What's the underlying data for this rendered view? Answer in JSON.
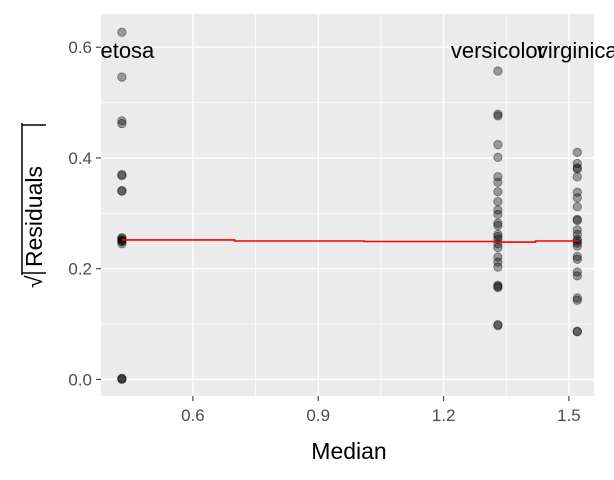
{
  "chart_data": {
    "type": "scatter",
    "title": "",
    "xlabel": "Median",
    "ylabel": "√|Residuals|",
    "ylabel_parts": {
      "radical": "√",
      "text": "Residuals"
    },
    "xlim": [
      0.38,
      1.56
    ],
    "ylim": [
      -0.03,
      0.66
    ],
    "x_ticks": [
      0.6,
      0.9,
      1.2,
      1.5
    ],
    "x_tick_labels": [
      "0.6",
      "0.9",
      "1.2",
      "1.5"
    ],
    "y_ticks": [
      0.0,
      0.2,
      0.4,
      0.6
    ],
    "y_tick_labels": [
      "0.0",
      "0.2",
      "0.4",
      "0.6"
    ],
    "grid": true,
    "background": "#ebebeb",
    "grid_color": "#ffffff",
    "point_color": "#000000",
    "smooth_color": "#ff0000",
    "group_labels": [
      {
        "text": "setosa",
        "x": 0.43,
        "y": 0.595
      },
      {
        "text": "versicolor",
        "x": 1.33,
        "y": 0.595
      },
      {
        "text": "virginica",
        "x": 1.52,
        "y": 0.595
      }
    ],
    "series": [
      {
        "x_value": 0.43,
        "y": [
          0.627,
          0.546,
          0.467,
          0.462,
          0.37,
          0.368,
          0.341,
          0.34,
          0.256,
          0.254,
          0.252,
          0.25,
          0.249,
          0.245,
          0.002,
          0.001,
          0.0
        ]
      },
      {
        "x_value": 1.33,
        "y": [
          0.557,
          0.479,
          0.476,
          0.424,
          0.401,
          0.366,
          0.356,
          0.339,
          0.321,
          0.306,
          0.298,
          0.282,
          0.278,
          0.262,
          0.258,
          0.253,
          0.245,
          0.238,
          0.221,
          0.212,
          0.203,
          0.17,
          0.168,
          0.166,
          0.099,
          0.097
        ]
      },
      {
        "x_value": 1.52,
        "y": [
          0.41,
          0.39,
          0.382,
          0.38,
          0.366,
          0.338,
          0.328,
          0.312,
          0.289,
          0.287,
          0.27,
          0.262,
          0.253,
          0.25,
          0.246,
          0.241,
          0.222,
          0.217,
          0.194,
          0.187,
          0.147,
          0.143,
          0.087,
          0.086
        ]
      }
    ],
    "smooth_line": {
      "x": [
        0.43,
        0.7,
        0.7,
        1.01,
        1.01,
        1.33,
        1.33,
        1.42,
        1.42,
        1.52
      ],
      "y": [
        0.252,
        0.252,
        0.25,
        0.25,
        0.249,
        0.249,
        0.248,
        0.248,
        0.25,
        0.25
      ]
    }
  }
}
